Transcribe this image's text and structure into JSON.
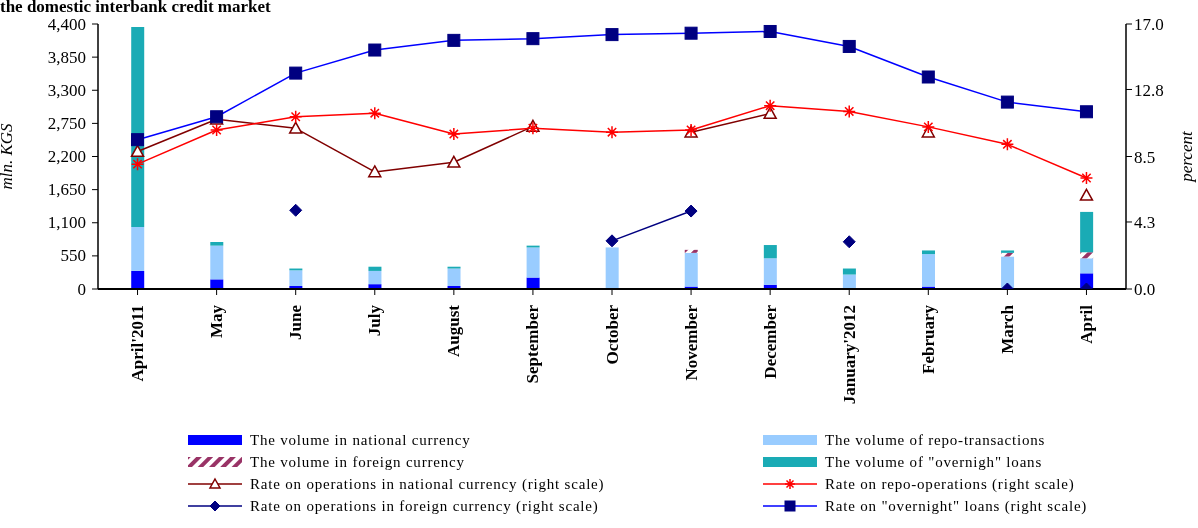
{
  "chart_data": {
    "type": "bar",
    "title": "the domestic interbank credit market",
    "ylabel": "mln. KGS",
    "y2label": "percent",
    "categories": [
      "April'2011",
      "May",
      "June",
      "July",
      "August",
      "September",
      "October",
      "November",
      "December",
      "January'2012",
      "February",
      "March",
      "April"
    ],
    "stacked": true,
    "legend": "bottom",
    "grid": false,
    "ylim": [
      0,
      4400
    ],
    "yticks": [
      0,
      {
        "value": 550,
        "label": "550"
      },
      {
        "value": 1100,
        "label": "1,100"
      },
      {
        "value": 1650,
        "label": "1,650"
      },
      {
        "value": 2200,
        "label": "2,200"
      },
      {
        "value": 2750,
        "label": "2,750"
      },
      {
        "value": 3300,
        "label": "3,300"
      },
      {
        "value": 3850,
        "label": "3,850"
      },
      {
        "value": 4400,
        "label": "4,400"
      }
    ],
    "y2lim": [
      0,
      17
    ],
    "y2ticks": [
      {
        "value": 0,
        "label": "0.0"
      },
      {
        "value": 4.3,
        "label": "4.3"
      },
      {
        "value": 8.5,
        "label": "8.5"
      },
      {
        "value": 12.8,
        "label": "12.8"
      },
      {
        "value": 17,
        "label": "17.0"
      }
    ],
    "series": [
      {
        "name": "The volume in national currency",
        "color": "#0000ff",
        "values": [
          300,
          160,
          50,
          80,
          50,
          190,
          null,
          40,
          70,
          null,
          40,
          null,
          260
        ]
      },
      {
        "name": "The volume of repo-transactions",
        "color": "#99ccff",
        "values": [
          730,
          560,
          260,
          220,
          290,
          500,
          690,
          560,
          440,
          240,
          540,
          540,
          250
        ]
      },
      {
        "name": "The volume in foreign currency",
        "color": "#993366",
        "values": [
          null,
          null,
          null,
          null,
          null,
          null,
          null,
          50,
          null,
          null,
          null,
          60,
          100
        ]
      },
      {
        "name": "The volume of \"overnigh\" loans",
        "color": "#1aabb5",
        "values": [
          3320,
          60,
          30,
          70,
          30,
          30,
          null,
          null,
          220,
          100,
          60,
          40,
          670
        ]
      },
      {
        "name": "Rate on operations in national currency (right scale)",
        "type": "line",
        "axis": "y2",
        "marker": "triangle",
        "color": "#800000",
        "values": [
          8.82,
          10.89,
          10.31,
          7.51,
          8.13,
          10.43,
          null,
          10.06,
          11.26,
          null,
          10.06,
          null,
          6.01
        ]
      },
      {
        "name": "Rate on repo-operations (right scale)",
        "type": "line",
        "axis": "y2",
        "marker": "cross",
        "color": "#ff0000",
        "values": [
          8.01,
          10.2,
          11.05,
          11.28,
          9.94,
          10.31,
          10.06,
          10.2,
          11.76,
          11.39,
          10.4,
          9.28,
          7.12
        ]
      },
      {
        "name": "Rate on operations in foreign currency (right scale)",
        "type": "line",
        "axis": "y2",
        "marker": "diamond",
        "color": "#000080",
        "values": [
          null,
          null,
          5.05,
          null,
          null,
          null,
          3.09,
          5.0,
          null,
          3.03,
          null,
          0,
          0
        ]
      },
      {
        "name": "Rate on \"overnight\" loans (right scale)",
        "type": "line",
        "axis": "y2",
        "marker": "square",
        "color": "#0000ff",
        "values": [
          9.58,
          11.05,
          13.85,
          15.33,
          15.95,
          16.06,
          16.32,
          16.41,
          16.52,
          15.56,
          13.6,
          11.99,
          11.37
        ]
      }
    ]
  }
}
